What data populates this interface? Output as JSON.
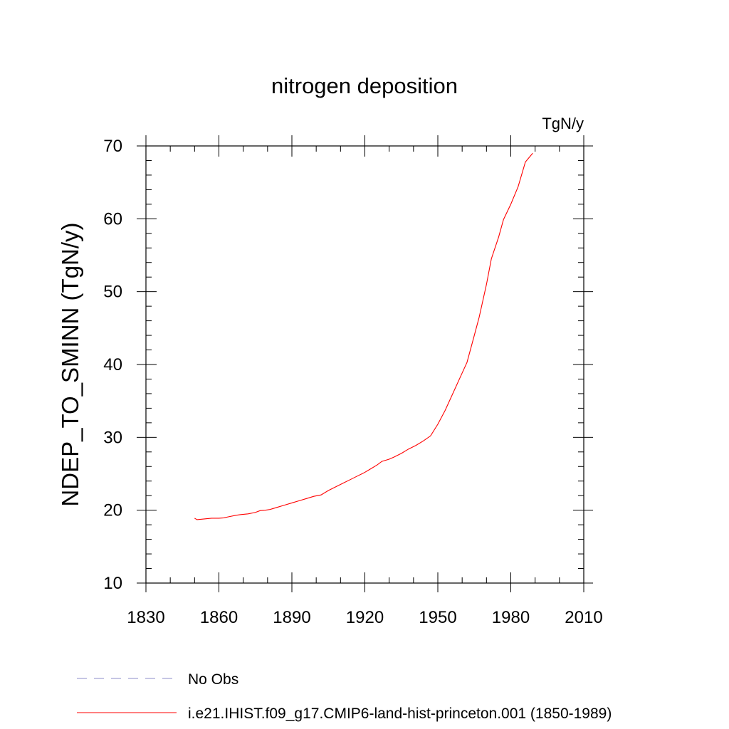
{
  "chart_data": {
    "type": "line",
    "title": "nitrogen deposition",
    "units_label": "TgN/y",
    "ylabel": "NDEP_TO_SMINN  (TgN/y)",
    "xlabel": "",
    "xlim": [
      1830,
      2010
    ],
    "ylim": [
      10,
      70
    ],
    "x_ticks": [
      1830,
      1860,
      1890,
      1920,
      1950,
      1980,
      2010
    ],
    "y_ticks": [
      10,
      20,
      30,
      40,
      50,
      60,
      70
    ],
    "grid": false,
    "legend_position": "bottom",
    "series": [
      {
        "name": "No Obs",
        "color": "#8c8cc8",
        "dash": "dashed",
        "x": [],
        "y": []
      },
      {
        "name": "i.e21.IHIST.f09_g17.CMIP6-land-hist-princeton.001 (1850-1989)",
        "color": "#ff0000",
        "dash": "solid",
        "x": [
          1850,
          1851,
          1854,
          1857,
          1860,
          1862,
          1864,
          1867,
          1869,
          1872,
          1875,
          1877,
          1879,
          1881,
          1884,
          1887,
          1890,
          1893,
          1896,
          1899,
          1902,
          1905,
          1908,
          1911,
          1914,
          1917,
          1920,
          1922,
          1925,
          1927,
          1930,
          1932,
          1935,
          1938,
          1941,
          1944,
          1947,
          1950,
          1953,
          1956,
          1959,
          1962,
          1965,
          1967,
          1970,
          1972,
          1975,
          1977,
          1980,
          1983,
          1986,
          1989
        ],
        "y": [
          18.9,
          18.7,
          18.8,
          18.9,
          18.9,
          18.95,
          19.1,
          19.3,
          19.4,
          19.5,
          19.7,
          19.95,
          20.0,
          20.1,
          20.4,
          20.7,
          21.0,
          21.3,
          21.6,
          21.9,
          22.1,
          22.7,
          23.2,
          23.7,
          24.2,
          24.7,
          25.2,
          25.6,
          26.2,
          26.7,
          27.0,
          27.3,
          27.8,
          28.4,
          28.9,
          29.5,
          30.2,
          31.8,
          33.7,
          35.9,
          38.1,
          40.3,
          44.0,
          46.5,
          51.0,
          54.5,
          57.5,
          59.9,
          62.0,
          64.4,
          67.8,
          69.0
        ]
      }
    ]
  }
}
